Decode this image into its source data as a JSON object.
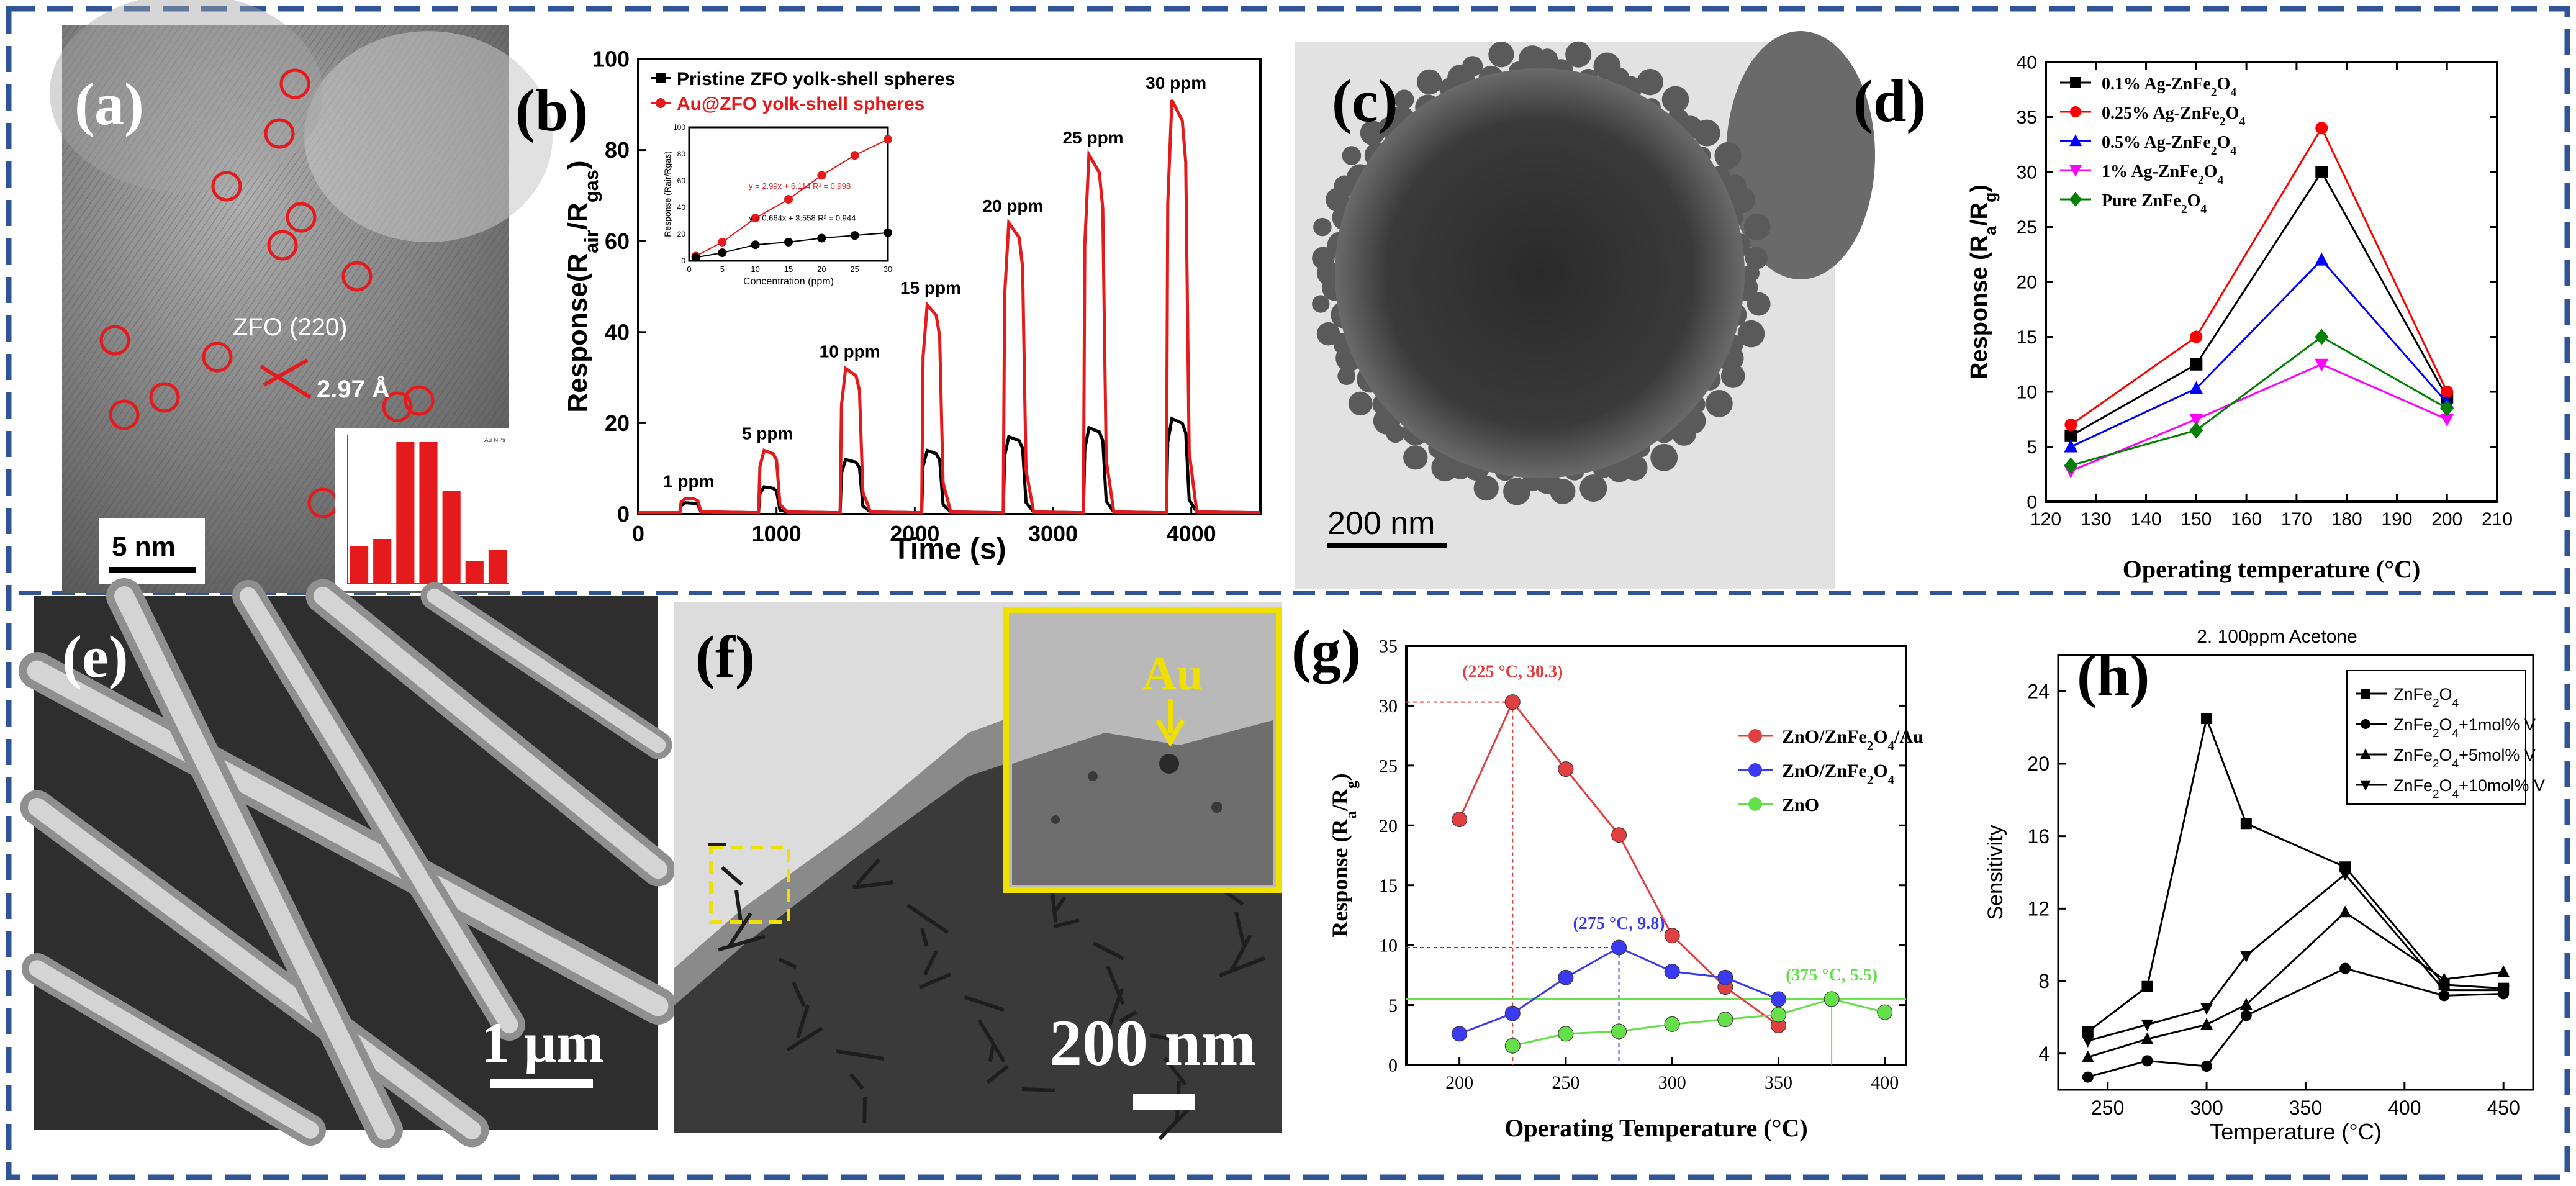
{
  "figure": {
    "border_color": "#2f5597",
    "accent_red": "#e41a1c",
    "panels": {
      "a": {
        "label": "(a)",
        "lattice_label": "ZFO (220)",
        "spacing_label": "2.97 Å",
        "scale_label": "5 nm",
        "inset_legend": "Au NPs",
        "inset_hist_values": [
          0.1,
          0.12,
          0.38,
          0.38,
          0.25,
          0.06,
          0.09
        ]
      },
      "c": {
        "label": "(c)",
        "scale_label": "200 nm"
      },
      "e": {
        "label": "(e)",
        "scale_label": "1 μm"
      },
      "f": {
        "label": "(f)",
        "scale_label": "200 nm",
        "inset_label": "Au"
      }
    }
  },
  "chart_data": [
    {
      "id": "b",
      "panel_label": "(b)",
      "type": "line",
      "xlabel": "Time (s)",
      "ylabel": "Response(R_air/R_gas)",
      "xlim": [
        0,
        4500
      ],
      "ylim": [
        0,
        100
      ],
      "xticks": [
        0,
        1000,
        2000,
        3000,
        4000
      ],
      "yticks": [
        0,
        20,
        40,
        60,
        80,
        100
      ],
      "legend": [
        "Pristine ZFO yolk-shell spheres",
        "Au@ZFO yolk-shell spheres"
      ],
      "pulses": [
        {
          "label": "1 ppm",
          "start": 300,
          "end": 430,
          "au_peak": 3.5,
          "pristine_peak": 2.5
        },
        {
          "label": "5 ppm",
          "start": 870,
          "end": 1000,
          "au_peak": 14,
          "pristine_peak": 6
        },
        {
          "label": "10 ppm",
          "start": 1460,
          "end": 1600,
          "au_peak": 32,
          "pristine_peak": 12
        },
        {
          "label": "15 ppm",
          "start": 2050,
          "end": 2180,
          "au_peak": 46,
          "pristine_peak": 14
        },
        {
          "label": "20 ppm",
          "start": 2640,
          "end": 2780,
          "au_peak": 64,
          "pristine_peak": 17
        },
        {
          "label": "25 ppm",
          "start": 3220,
          "end": 3360,
          "au_peak": 79,
          "pristine_peak": 19
        },
        {
          "label": "30 ppm",
          "start": 3820,
          "end": 3960,
          "au_peak": 91,
          "pristine_peak": 21
        }
      ],
      "inset": {
        "xlabel": "Concentration (ppm)",
        "ylabel": "Response (Rair/Rgas)",
        "xlim": [
          0,
          30
        ],
        "ylim": [
          0,
          100
        ],
        "xticks": [
          0,
          5,
          10,
          15,
          20,
          25,
          30
        ],
        "yticks": [
          0,
          20,
          40,
          60,
          80,
          100
        ],
        "x": [
          1,
          5,
          10,
          15,
          20,
          25,
          30
        ],
        "series": [
          {
            "name": "Au@ZFO",
            "values": [
              3.5,
              14,
              32,
              46,
              64,
              79,
              91
            ],
            "fit": "y = 2.99x + 6.114  R² = 0.998"
          },
          {
            "name": "Pristine",
            "values": [
              2.5,
              6,
              12,
              14,
              17,
              19,
              21
            ],
            "fit": "y = 0.664x + 3.558  R² = 0.944"
          }
        ]
      }
    },
    {
      "id": "d",
      "panel_label": "(d)",
      "type": "line",
      "xlabel": "Operating temperature (°C)",
      "ylabel": "Response (Ra/Rg)",
      "xlim": [
        120,
        210
      ],
      "ylim": [
        0,
        40
      ],
      "xticks": [
        120,
        130,
        140,
        150,
        160,
        170,
        180,
        190,
        200,
        210
      ],
      "yticks": [
        0,
        5,
        10,
        15,
        20,
        25,
        30,
        35,
        40
      ],
      "x": [
        125,
        150,
        175,
        200
      ],
      "series": [
        {
          "name": "0.1% Ag-ZnFe2O4",
          "values": [
            6,
            12.5,
            30,
            9.5
          ],
          "color": "#000000",
          "marker": "square"
        },
        {
          "name": "0.25% Ag-ZnFe2O4",
          "values": [
            7,
            15,
            34,
            10
          ],
          "color": "#ff0000",
          "marker": "circle"
        },
        {
          "name": "0.5% Ag-ZnFe2O4",
          "values": [
            5,
            10.3,
            22,
            9
          ],
          "color": "#0000ff",
          "marker": "triangle"
        },
        {
          "name": "1% Ag-ZnFe2O4",
          "values": [
            2.8,
            7.5,
            12.5,
            7.5
          ],
          "color": "#ff00ff",
          "marker": "triangle-down"
        },
        {
          "name": "Pure ZnFe2O4",
          "values": [
            3.3,
            6.5,
            15,
            8.5
          ],
          "color": "#008000",
          "marker": "diamond"
        }
      ]
    },
    {
      "id": "g",
      "panel_label": "(g)",
      "type": "line",
      "xlabel": "Operating Temperature (°C)",
      "ylabel": "Response (Ra/Rg)",
      "xlim": [
        175,
        410
      ],
      "ylim": [
        0,
        35
      ],
      "xticks": [
        200,
        250,
        300,
        350,
        400
      ],
      "yticks": [
        0,
        5,
        10,
        15,
        20,
        25,
        30,
        35
      ],
      "series": [
        {
          "name": "ZnO/ZnFe2O4/Au",
          "x": [
            200,
            225,
            250,
            275,
            300,
            325,
            350
          ],
          "values": [
            20.5,
            30.3,
            24.7,
            19.2,
            10.8,
            6.5,
            3.3
          ],
          "color": "#e04040"
        },
        {
          "name": "ZnO/ZnFe2O4",
          "x": [
            200,
            225,
            250,
            275,
            300,
            325,
            350
          ],
          "values": [
            2.6,
            4.3,
            7.3,
            9.8,
            7.8,
            7.3,
            5.5
          ],
          "color": "#3a3af0"
        },
        {
          "name": "ZnO",
          "x": [
            225,
            250,
            275,
            300,
            325,
            350,
            375,
            400
          ],
          "values": [
            1.6,
            2.6,
            2.8,
            3.4,
            3.8,
            4.2,
            5.5,
            4.4
          ],
          "color": "#66e04a"
        }
      ],
      "annotations": [
        {
          "text": "(225 °C, 30.3)",
          "x": 225,
          "y": 30.3,
          "color": "#e04040"
        },
        {
          "text": "(275 °C, 9.8)",
          "x": 275,
          "y": 9.8,
          "color": "#3a3af0"
        },
        {
          "text": "(375 °C, 5.5)",
          "x": 375,
          "y": 5.5,
          "color": "#66e04a"
        }
      ]
    },
    {
      "id": "h",
      "panel_label": "(h)",
      "type": "line",
      "title": "2. 100ppm Acetone",
      "xlabel": "Temperature (°C)",
      "ylabel": "Sensitivity",
      "xlim": [
        225,
        465
      ],
      "ylim": [
        2,
        26
      ],
      "xticks": [
        250,
        300,
        350,
        400,
        450
      ],
      "yticks": [
        4,
        8,
        12,
        16,
        20,
        24
      ],
      "x": [
        240,
        270,
        300,
        320,
        370,
        420,
        450
      ],
      "series": [
        {
          "name": "ZnFe2O4",
          "values": [
            5.2,
            7.7,
            22.5,
            16.7,
            14.3,
            7.8,
            7.6
          ],
          "marker": "square"
        },
        {
          "name": "ZnFe2O4+1mol% V",
          "values": [
            2.7,
            3.6,
            3.3,
            6.1,
            8.7,
            7.2,
            7.3
          ],
          "marker": "circle"
        },
        {
          "name": "ZnFe2O4+5mol% V",
          "values": [
            3.8,
            4.8,
            5.6,
            6.7,
            11.8,
            8.1,
            8.5
          ],
          "marker": "triangle"
        },
        {
          "name": "ZnFe2O4+10mol% V",
          "values": [
            4.7,
            5.6,
            6.5,
            9.4,
            13.9,
            7.5,
            7.5
          ],
          "marker": "triangle-down"
        }
      ]
    }
  ]
}
